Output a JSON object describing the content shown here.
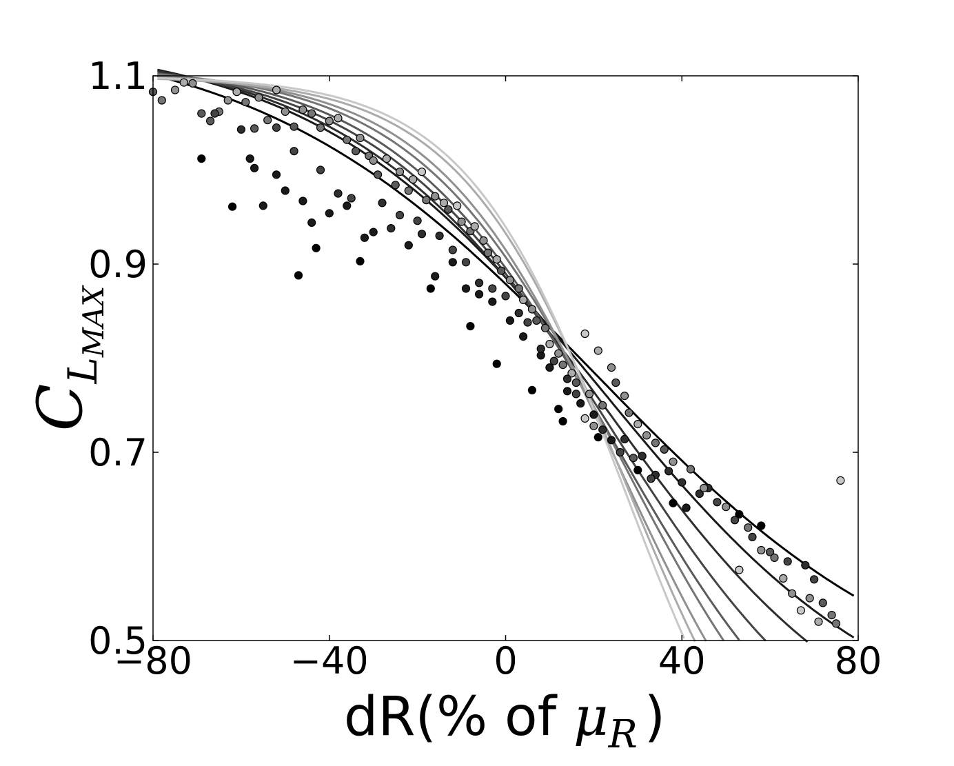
{
  "chart_data": {
    "type": "scatter",
    "xlabel_prefix": "dR(% of ",
    "xlabel_math": "μ",
    "xlabel_sub": "R",
    "xlabel_suffix": ")",
    "ylabel_main": "C",
    "ylabel_sub": "L",
    "ylabel_subsub": "MAX",
    "xlim": [
      -80,
      80
    ],
    "ylim": [
      0.5,
      1.1
    ],
    "xticks": [
      -80,
      -40,
      0,
      40,
      80
    ],
    "xtick_labels": [
      "−80",
      "−40",
      "0",
      "40",
      "80"
    ],
    "yticks": [
      0.5,
      0.7,
      0.9,
      1.1
    ],
    "ytick_labels": [
      "0.5",
      "0.7",
      "0.9",
      "1.1"
    ],
    "grid": false,
    "fit_curves": [
      {
        "color": "#000000",
        "A": 1.15,
        "B": 0.42,
        "x0": 20,
        "s": 38
      },
      {
        "color": "#1a1a1a",
        "A": 1.14,
        "B": 0.39,
        "x0": 22,
        "s": 33
      },
      {
        "color": "#2e2e2e",
        "A": 1.13,
        "B": 0.36,
        "x0": 23,
        "s": 30
      },
      {
        "color": "#444444",
        "A": 1.12,
        "B": 0.33,
        "x0": 24,
        "s": 27
      },
      {
        "color": "#5a5a5a",
        "A": 1.115,
        "B": 0.3,
        "x0": 25,
        "s": 25
      },
      {
        "color": "#757575",
        "A": 1.11,
        "B": 0.28,
        "x0": 26,
        "s": 23
      },
      {
        "color": "#909090",
        "A": 1.105,
        "B": 0.26,
        "x0": 26,
        "s": 21
      },
      {
        "color": "#ababab",
        "A": 1.1,
        "B": 0.24,
        "x0": 27,
        "s": 19
      },
      {
        "color": "#c8c8c8",
        "A": 1.1,
        "B": 0.22,
        "x0": 27,
        "s": 18
      }
    ],
    "scatter_points": [
      {
        "x": -69,
        "y": 1.012,
        "c": 0
      },
      {
        "x": -62,
        "y": 0.961,
        "c": 0
      },
      {
        "x": -58,
        "y": 1.012,
        "c": 1
      },
      {
        "x": -57,
        "y": 1.002,
        "c": 1
      },
      {
        "x": -47,
        "y": 0.888,
        "c": 0
      },
      {
        "x": -43,
        "y": 0.917,
        "c": 0
      },
      {
        "x": -33,
        "y": 0.903,
        "c": 0
      },
      {
        "x": -17,
        "y": 0.874,
        "c": 0
      },
      {
        "x": -8,
        "y": 0.834,
        "c": 0
      },
      {
        "x": -2,
        "y": 0.794,
        "c": 0
      },
      {
        "x": 6,
        "y": 0.766,
        "c": 0
      },
      {
        "x": 12,
        "y": 0.746,
        "c": 0
      },
      {
        "x": 13,
        "y": 0.733,
        "c": 0
      },
      {
        "x": 21,
        "y": 0.716,
        "c": 0
      },
      {
        "x": 24,
        "y": 0.713,
        "c": 1
      },
      {
        "x": 30,
        "y": 0.681,
        "c": 0
      },
      {
        "x": 38,
        "y": 0.646,
        "c": 0
      },
      {
        "x": 41,
        "y": 0.641,
        "c": 1
      },
      {
        "x": 46,
        "y": 0.662,
        "c": 2
      },
      {
        "x": 53,
        "y": 0.634,
        "c": 0
      },
      {
        "x": 58,
        "y": 0.622,
        "c": 0
      },
      {
        "x": -55,
        "y": 0.962,
        "c": 1
      },
      {
        "x": -52,
        "y": 0.995,
        "c": 1
      },
      {
        "x": -50,
        "y": 0.978,
        "c": 1
      },
      {
        "x": -46,
        "y": 0.967,
        "c": 1
      },
      {
        "x": -44,
        "y": 0.944,
        "c": 1
      },
      {
        "x": -40,
        "y": 0.954,
        "c": 1
      },
      {
        "x": -36,
        "y": 0.962,
        "c": 1
      },
      {
        "x": -32,
        "y": 0.928,
        "c": 1
      },
      {
        "x": -30,
        "y": 0.934,
        "c": 1
      },
      {
        "x": -26,
        "y": 0.938,
        "c": 2
      },
      {
        "x": -22,
        "y": 0.92,
        "c": 1
      },
      {
        "x": -19,
        "y": 0.932,
        "c": 2
      },
      {
        "x": -16,
        "y": 0.887,
        "c": 1
      },
      {
        "x": -12,
        "y": 0.902,
        "c": 1
      },
      {
        "x": -9,
        "y": 0.874,
        "c": 1
      },
      {
        "x": -6,
        "y": 0.868,
        "c": 1
      },
      {
        "x": -3,
        "y": 0.86,
        "c": 1
      },
      {
        "x": 1,
        "y": 0.84,
        "c": 1
      },
      {
        "x": 4,
        "y": 0.823,
        "c": 1
      },
      {
        "x": 8,
        "y": 0.803,
        "c": 1
      },
      {
        "x": 10,
        "y": 0.79,
        "c": 1
      },
      {
        "x": 14,
        "y": 0.765,
        "c": 1
      },
      {
        "x": 17,
        "y": 0.752,
        "c": 1
      },
      {
        "x": 20,
        "y": 0.74,
        "c": 1
      },
      {
        "x": 22,
        "y": 0.724,
        "c": 2
      },
      {
        "x": 27,
        "y": 0.714,
        "c": 2
      },
      {
        "x": 31,
        "y": 0.696,
        "c": 2
      },
      {
        "x": 34,
        "y": 0.676,
        "c": 2
      },
      {
        "x": 37,
        "y": 0.68,
        "c": 2
      },
      {
        "x": 40,
        "y": 0.668,
        "c": 2
      },
      {
        "x": 44,
        "y": 0.656,
        "c": 2
      },
      {
        "x": 48,
        "y": 0.647,
        "c": 3
      },
      {
        "x": 52,
        "y": 0.628,
        "c": 3
      },
      {
        "x": 56,
        "y": 0.61,
        "c": 3
      },
      {
        "x": 60,
        "y": 0.594,
        "c": 4
      },
      {
        "x": 64,
        "y": 0.584,
        "c": 3
      },
      {
        "x": 68,
        "y": 0.58,
        "c": 2
      },
      {
        "x": 70,
        "y": 0.565,
        "c": 3
      },
      {
        "x": 72,
        "y": 0.54,
        "c": 4
      },
      {
        "x": 74,
        "y": 0.527,
        "c": 5
      },
      {
        "x": 75,
        "y": 0.518,
        "c": 5
      },
      {
        "x": -80,
        "y": 1.083,
        "c": 4
      },
      {
        "x": -78,
        "y": 1.074,
        "c": 5
      },
      {
        "x": -75,
        "y": 1.085,
        "c": 6
      },
      {
        "x": -73,
        "y": 1.093,
        "c": 7
      },
      {
        "x": -71,
        "y": 1.092,
        "c": 6
      },
      {
        "x": -69,
        "y": 1.06,
        "c": 4
      },
      {
        "x": -67,
        "y": 1.052,
        "c": 4
      },
      {
        "x": -65,
        "y": 1.062,
        "c": 5
      },
      {
        "x": -63,
        "y": 1.074,
        "c": 6
      },
      {
        "x": -61,
        "y": 1.083,
        "c": 7
      },
      {
        "x": -59,
        "y": 1.072,
        "c": 5
      },
      {
        "x": -57,
        "y": 1.044,
        "c": 4
      },
      {
        "x": -56,
        "y": 1.077,
        "c": 6
      },
      {
        "x": -54,
        "y": 1.053,
        "c": 5
      },
      {
        "x": -52,
        "y": 1.085,
        "c": 7
      },
      {
        "x": -50,
        "y": 1.062,
        "c": 6
      },
      {
        "x": -48,
        "y": 1.046,
        "c": 4
      },
      {
        "x": -46,
        "y": 1.064,
        "c": 6
      },
      {
        "x": -44,
        "y": 1.06,
        "c": 5
      },
      {
        "x": -42,
        "y": 1.045,
        "c": 5
      },
      {
        "x": -40,
        "y": 1.052,
        "c": 6
      },
      {
        "x": -38,
        "y": 1.055,
        "c": 7
      },
      {
        "x": -36,
        "y": 1.032,
        "c": 5
      },
      {
        "x": -34,
        "y": 1.02,
        "c": 4
      },
      {
        "x": -33,
        "y": 1.034,
        "c": 6
      },
      {
        "x": -31,
        "y": 1.015,
        "c": 5
      },
      {
        "x": -30,
        "y": 1.01,
        "c": 6
      },
      {
        "x": -29,
        "y": 0.995,
        "c": 4
      },
      {
        "x": -27,
        "y": 1.012,
        "c": 7
      },
      {
        "x": -25,
        "y": 0.984,
        "c": 4
      },
      {
        "x": -24,
        "y": 0.998,
        "c": 6
      },
      {
        "x": -22,
        "y": 0.978,
        "c": 5
      },
      {
        "x": -21,
        "y": 0.99,
        "c": 7
      },
      {
        "x": -19,
        "y": 0.998,
        "c": 8
      },
      {
        "x": -18,
        "y": 0.968,
        "c": 5
      },
      {
        "x": -16,
        "y": 0.972,
        "c": 6
      },
      {
        "x": -14,
        "y": 0.965,
        "c": 7
      },
      {
        "x": -13,
        "y": 0.958,
        "c": 4
      },
      {
        "x": -11,
        "y": 0.962,
        "c": 8
      },
      {
        "x": -10,
        "y": 0.945,
        "c": 6
      },
      {
        "x": -8,
        "y": 0.935,
        "c": 5
      },
      {
        "x": -7,
        "y": 0.94,
        "c": 7
      },
      {
        "x": -5,
        "y": 0.925,
        "c": 6
      },
      {
        "x": -4,
        "y": 0.912,
        "c": 5
      },
      {
        "x": -2,
        "y": 0.905,
        "c": 7
      },
      {
        "x": -1,
        "y": 0.893,
        "c": 4
      },
      {
        "x": 1,
        "y": 0.883,
        "c": 6
      },
      {
        "x": 3,
        "y": 0.874,
        "c": 5
      },
      {
        "x": 4,
        "y": 0.862,
        "c": 7
      },
      {
        "x": 6,
        "y": 0.852,
        "c": 6
      },
      {
        "x": 7,
        "y": 0.84,
        "c": 4
      },
      {
        "x": 9,
        "y": 0.832,
        "c": 5
      },
      {
        "x": 10,
        "y": 0.815,
        "c": 7
      },
      {
        "x": 12,
        "y": 0.805,
        "c": 6
      },
      {
        "x": 13,
        "y": 0.793,
        "c": 5
      },
      {
        "x": 15,
        "y": 0.784,
        "c": 7
      },
      {
        "x": 16,
        "y": 0.774,
        "c": 4
      },
      {
        "x": 18,
        "y": 0.826,
        "c": 8
      },
      {
        "x": 19,
        "y": 0.762,
        "c": 6
      },
      {
        "x": 21,
        "y": 0.808,
        "c": 7
      },
      {
        "x": 22,
        "y": 0.75,
        "c": 5
      },
      {
        "x": 24,
        "y": 0.79,
        "c": 6
      },
      {
        "x": 25,
        "y": 0.774,
        "c": 4
      },
      {
        "x": 27,
        "y": 0.76,
        "c": 6
      },
      {
        "x": 28,
        "y": 0.742,
        "c": 5
      },
      {
        "x": 30,
        "y": 0.73,
        "c": 7
      },
      {
        "x": 32,
        "y": 0.718,
        "c": 6
      },
      {
        "x": 34,
        "y": 0.71,
        "c": 5
      },
      {
        "x": 36,
        "y": 0.703,
        "c": 4
      },
      {
        "x": 38,
        "y": 0.69,
        "c": 6
      },
      {
        "x": 42,
        "y": 0.682,
        "c": 5
      },
      {
        "x": 45,
        "y": 0.662,
        "c": 6
      },
      {
        "x": 50,
        "y": 0.642,
        "c": 6
      },
      {
        "x": 53,
        "y": 0.575,
        "c": 8
      },
      {
        "x": 55,
        "y": 0.62,
        "c": 5
      },
      {
        "x": 58,
        "y": 0.596,
        "c": 6
      },
      {
        "x": 61,
        "y": 0.588,
        "c": 5
      },
      {
        "x": 63,
        "y": 0.566,
        "c": 7
      },
      {
        "x": 65,
        "y": 0.55,
        "c": 6
      },
      {
        "x": 67,
        "y": 0.532,
        "c": 8
      },
      {
        "x": 69,
        "y": 0.545,
        "c": 6
      },
      {
        "x": 71,
        "y": 0.52,
        "c": 7
      },
      {
        "x": 76,
        "y": 0.67,
        "c": 8
      },
      {
        "x": 18,
        "y": 0.736,
        "c": 8
      },
      {
        "x": 20,
        "y": 0.728,
        "c": 6
      },
      {
        "x": 26,
        "y": 0.7,
        "c": 3
      },
      {
        "x": 29,
        "y": 0.694,
        "c": 4
      },
      {
        "x": 33,
        "y": 0.672,
        "c": 3
      },
      {
        "x": -28,
        "y": 0.965,
        "c": 2
      },
      {
        "x": -24,
        "y": 0.952,
        "c": 3
      },
      {
        "x": -20,
        "y": 0.946,
        "c": 3
      },
      {
        "x": -15,
        "y": 0.93,
        "c": 2
      },
      {
        "x": -12,
        "y": 0.915,
        "c": 3
      },
      {
        "x": -9,
        "y": 0.902,
        "c": 3
      },
      {
        "x": -6,
        "y": 0.88,
        "c": 2
      },
      {
        "x": -3,
        "y": 0.874,
        "c": 3
      },
      {
        "x": 0,
        "y": 0.866,
        "c": 3
      },
      {
        "x": 3,
        "y": 0.848,
        "c": 2
      },
      {
        "x": 5,
        "y": 0.838,
        "c": 3
      },
      {
        "x": 8,
        "y": 0.81,
        "c": 2
      },
      {
        "x": 11,
        "y": 0.797,
        "c": 3
      },
      {
        "x": 14,
        "y": 0.778,
        "c": 2
      },
      {
        "x": 16,
        "y": 0.762,
        "c": 3
      },
      {
        "x": -38,
        "y": 0.975,
        "c": 2
      },
      {
        "x": -35,
        "y": 0.97,
        "c": 3
      },
      {
        "x": -42,
        "y": 1.0,
        "c": 3
      },
      {
        "x": -48,
        "y": 1.02,
        "c": 3
      },
      {
        "x": -52,
        "y": 1.045,
        "c": 3
      },
      {
        "x": -60,
        "y": 1.043,
        "c": 2
      },
      {
        "x": -66,
        "y": 1.06,
        "c": 3
      }
    ]
  }
}
